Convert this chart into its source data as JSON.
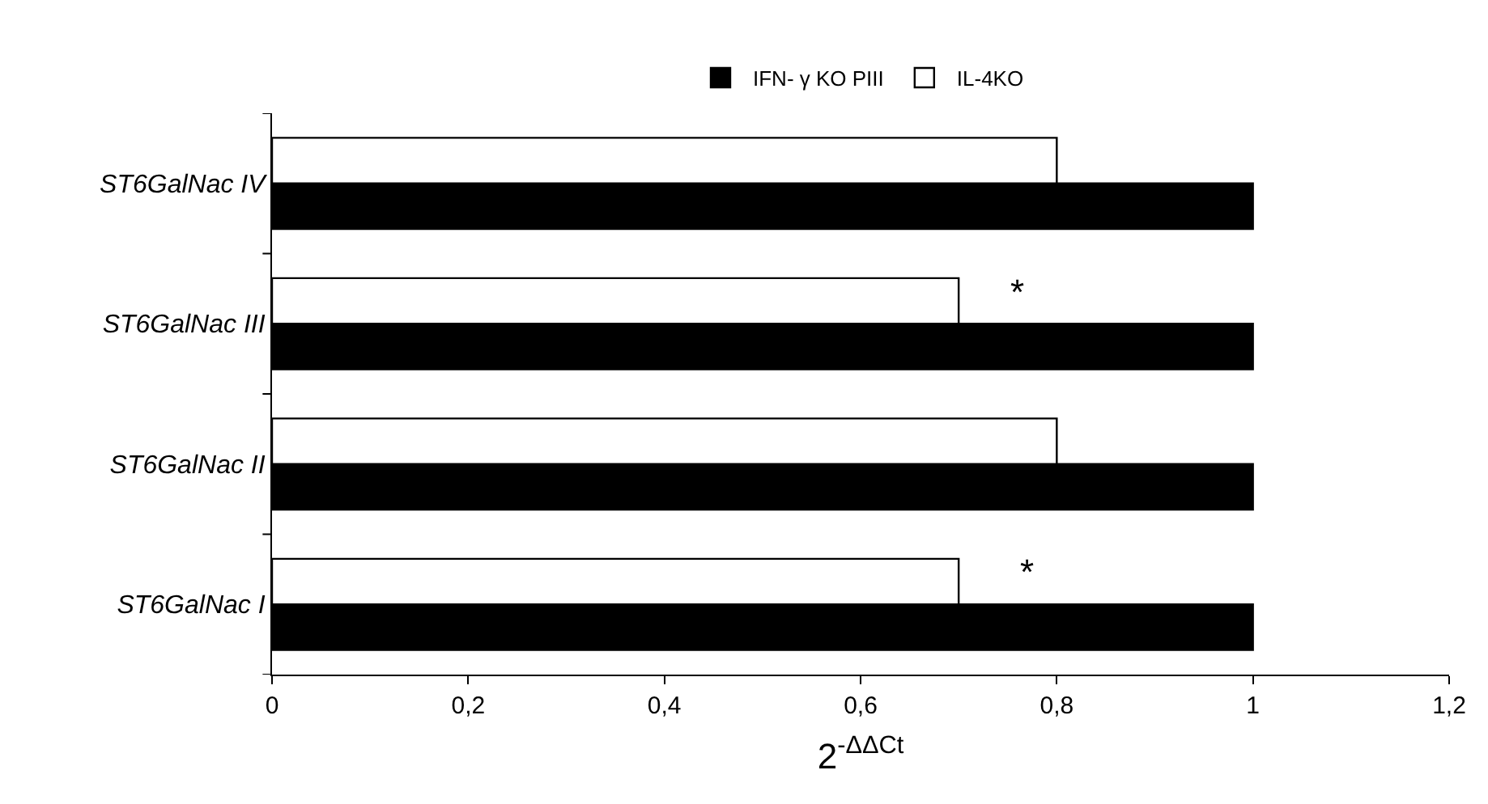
{
  "chart_data": {
    "type": "bar",
    "orientation": "horizontal",
    "xlabel": "2$^{-ΔΔCt}$",
    "categories": [
      "ST6GalNac IV",
      "ST6GalNac III",
      "ST6GalNac II",
      "ST6GalNac I"
    ],
    "series": [
      {
        "name": "IFN- γ KO PIII",
        "color": "#000000",
        "values": [
          1,
          1,
          1,
          1
        ]
      },
      {
        "name": "IL-4KO",
        "color": "#ffffff",
        "values": [
          0.8,
          0.7,
          0.8,
          0.7
        ]
      }
    ],
    "xlim": [
      0,
      1.2
    ],
    "xticks": [
      0,
      {
        "value": 0.2,
        "label": "0,2"
      },
      {
        "value": 0.4,
        "label": "0,4"
      },
      {
        "value": 0.6,
        "label": "0,6"
      },
      {
        "value": 0.8,
        "label": "0,8"
      },
      1,
      {
        "value": 1.2,
        "label": "1,2"
      }
    ],
    "annotations": [
      {
        "text": "*",
        "x": 0.76,
        "y": "ST6GalNac III"
      },
      {
        "text": "*",
        "x": 0.77,
        "y": "ST6GalNac I"
      }
    ],
    "legend": "top"
  }
}
